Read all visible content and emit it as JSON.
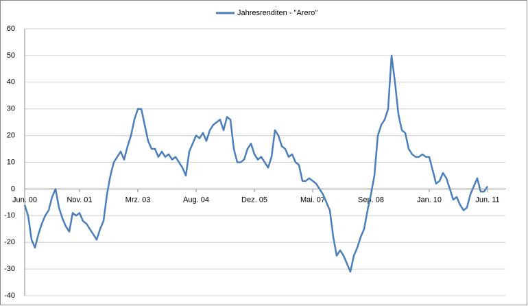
{
  "chart_data": {
    "type": "line",
    "series": [
      {
        "name": "Jahresrenditen - \"Arero\"",
        "color": "#4a7ebb",
        "values": [
          -6,
          -10,
          -19,
          -22,
          -17,
          -13,
          -10,
          -8,
          -3,
          0,
          -7,
          -11,
          -14,
          -16,
          -9,
          -10,
          -9,
          -12,
          -13,
          -15,
          -17,
          -19,
          -15,
          -12,
          -2,
          5,
          10,
          12,
          14,
          11,
          16,
          20,
          26,
          30,
          30,
          24,
          18,
          15,
          15,
          12,
          14,
          12,
          13,
          11,
          12,
          10,
          8,
          5,
          14,
          17,
          20,
          19,
          21,
          18,
          22,
          24,
          25,
          26,
          22,
          27,
          26,
          15,
          10,
          10,
          11,
          15,
          17,
          13,
          11,
          12,
          10,
          8,
          12,
          22,
          20,
          16,
          15,
          12,
          13,
          10,
          9,
          3,
          3,
          4,
          3,
          2,
          0,
          -2,
          -5,
          -8,
          -18,
          -25,
          -23,
          -25,
          -28,
          -31,
          -25,
          -22,
          -18,
          -15,
          -8,
          -2,
          5,
          20,
          24,
          26,
          30,
          50,
          40,
          28,
          22,
          21,
          15,
          13,
          12,
          12,
          13,
          12,
          12,
          7,
          2,
          3,
          6,
          4,
          0,
          -4,
          -3,
          -6,
          -8,
          -7,
          -2,
          1,
          4,
          -1,
          -1,
          1
        ]
      }
    ],
    "categories": [
      "Jun. 00",
      null,
      null,
      null,
      null,
      null,
      null,
      null,
      null,
      null,
      null,
      null,
      null,
      null,
      null,
      null,
      "Nov. 01",
      null,
      null,
      null,
      null,
      null,
      null,
      null,
      null,
      null,
      null,
      null,
      null,
      null,
      null,
      null,
      null,
      "Mrz. 03",
      null,
      null,
      null,
      null,
      null,
      null,
      null,
      null,
      null,
      null,
      null,
      null,
      null,
      null,
      null,
      null,
      "Aug. 04",
      null,
      null,
      null,
      null,
      null,
      null,
      null,
      null,
      null,
      null,
      null,
      null,
      null,
      null,
      null,
      null,
      "Dez. 05",
      null,
      null,
      null,
      null,
      null,
      null,
      null,
      null,
      null,
      null,
      null,
      null,
      null,
      null,
      null,
      null,
      "Mai. 07",
      null,
      null,
      null,
      null,
      null,
      null,
      null,
      null,
      null,
      null,
      null,
      null,
      null,
      null,
      null,
      null,
      "Sep. 08",
      null,
      null,
      null,
      null,
      null,
      null,
      null,
      null,
      null,
      null,
      null,
      null,
      null,
      null,
      null,
      null,
      "Jan. 10",
      null,
      null,
      null,
      null,
      null,
      null,
      null,
      null,
      null,
      null,
      null,
      null,
      null,
      null,
      null,
      null,
      "Jun. 11"
    ],
    "ylim": [
      -40,
      60
    ],
    "yticks": [
      -40,
      -30,
      -20,
      -10,
      0,
      10,
      20,
      30,
      40,
      50,
      60
    ],
    "grid": true,
    "legend": "top"
  }
}
